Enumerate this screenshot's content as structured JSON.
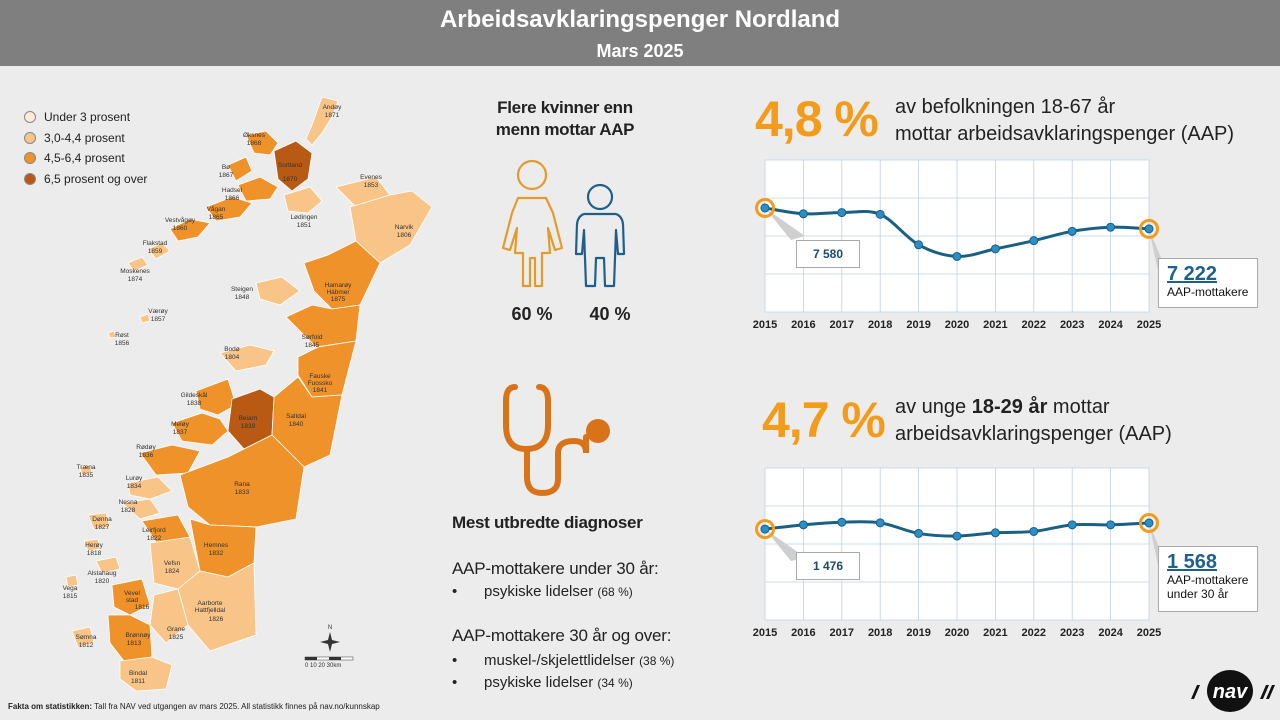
{
  "header": {
    "title": "Arbeidsavklaringspenger Nordland",
    "subtitle": "Mars 2025"
  },
  "legend": [
    {
      "label": "Under 3 prosent",
      "color": "#fdebd6"
    },
    {
      "label": "3,0-4,4 prosent",
      "color": "#f8c488"
    },
    {
      "label": "4,5-6,4 prosent",
      "color": "#f0922a"
    },
    {
      "label": "6,5 prosent og over",
      "color": "#b85a14"
    }
  ],
  "map": {
    "scale_label": "0  10  20  30km",
    "north": "N",
    "municipalities": [
      {
        "name": "Andøy",
        "code": "1871"
      },
      {
        "name": "Øksnes",
        "code": "1868"
      },
      {
        "name": "Bø",
        "code": "1867"
      },
      {
        "name": "Sortland",
        "code": "1870"
      },
      {
        "name": "Hadsel",
        "code": "1866"
      },
      {
        "name": "Evenes",
        "code": "1853"
      },
      {
        "name": "Vågan",
        "code": "1865"
      },
      {
        "name": "Lødingen",
        "code": "1851"
      },
      {
        "name": "Vestvågøy",
        "code": "1860"
      },
      {
        "name": "Narvik",
        "code": "1806"
      },
      {
        "name": "Flakstad",
        "code": "1859"
      },
      {
        "name": "Moskenes",
        "code": "1874"
      },
      {
        "name": "Steigen",
        "code": "1848"
      },
      {
        "name": "Hamarøy Hábmer",
        "code": "1875"
      },
      {
        "name": "Værøy",
        "code": "1857"
      },
      {
        "name": "Røst",
        "code": "1856"
      },
      {
        "name": "Bodø",
        "code": "1804"
      },
      {
        "name": "Sørfold",
        "code": "1845"
      },
      {
        "name": "Fauske Fuossko",
        "code": "1841"
      },
      {
        "name": "Gildeskål",
        "code": "1838"
      },
      {
        "name": "Beiarn",
        "code": "1839"
      },
      {
        "name": "Saltdal",
        "code": "1840"
      },
      {
        "name": "Meløy",
        "code": "1837"
      },
      {
        "name": "Rødøy",
        "code": "1836"
      },
      {
        "name": "Træna",
        "code": "1835"
      },
      {
        "name": "Lurøy",
        "code": "1834"
      },
      {
        "name": "Rana",
        "code": "1833"
      },
      {
        "name": "Nesna",
        "code": "1828"
      },
      {
        "name": "Dønna",
        "code": "1827"
      },
      {
        "name": "Leirfjord",
        "code": "1822"
      },
      {
        "name": "Herøy",
        "code": "1818"
      },
      {
        "name": "Hemnes",
        "code": "1832"
      },
      {
        "name": "Alstahaug",
        "code": "1820"
      },
      {
        "name": "Vefsn",
        "code": "1824"
      },
      {
        "name": "Vega",
        "code": "1815"
      },
      {
        "name": "Vevelstad",
        "code": "1816"
      },
      {
        "name": "Aarborte Hattfjelldal",
        "code": "1826"
      },
      {
        "name": "Grane",
        "code": "1825"
      },
      {
        "name": "Brønnøy",
        "code": "1813"
      },
      {
        "name": "Sømna",
        "code": "1812"
      },
      {
        "name": "Bindal",
        "code": "1811"
      }
    ]
  },
  "gender": {
    "title_line1": "Flere kvinner enn",
    "title_line2": "menn mottar AAP",
    "women_pct": "60 %",
    "men_pct": "40 %",
    "women_color": "#e39b2e",
    "men_color": "#1f5f8b",
    "women_icon": "female-person-icon",
    "men_icon": "male-person-icon"
  },
  "diagnoses": {
    "icon": "stethoscope-icon",
    "title": "Mest utbredte diagnoser",
    "group1_header": "AAP-mottakere under 30 år:",
    "group1_items": [
      {
        "bullet": "•",
        "text": "psykiske lidelser",
        "pct": "(68 %)"
      }
    ],
    "group2_header": "AAP-mottakere 30 år og over:",
    "group2_items": [
      {
        "bullet": "•",
        "text": "muskel-/skjelettlidelser",
        "pct": "(38 %)"
      },
      {
        "bullet": "•",
        "text": "psykiske lidelser",
        "pct": "(34 %)"
      }
    ]
  },
  "stat1": {
    "big": "4,8 %",
    "line1": "av befolkningen 18-67 år",
    "line2": "mottar arbeidsavklaringspenger (AAP)",
    "start_label": "7 580",
    "end_value": "7 222",
    "end_label": "AAP-mottakere"
  },
  "stat2": {
    "big": "4,7 %",
    "line1_pre": "av unge ",
    "line1_bold": "18-29 år",
    "line1_post": " mottar",
    "line2": "arbeidsavklaringspenger (AAP)",
    "start_label": "1 476",
    "end_value": "1 568",
    "end_label1": "AAP-mottakere",
    "end_label2": "under 30 år"
  },
  "chart_data": [
    {
      "type": "line",
      "x": [
        "2015",
        "2016",
        "2017",
        "2018",
        "2019",
        "2020",
        "2021",
        "2022",
        "2023",
        "2024",
        "2025"
      ],
      "series": [
        {
          "values": [
            7580,
            7480,
            7500,
            7470,
            6950,
            6750,
            6880,
            7020,
            7180,
            7250,
            7222
          ]
        }
      ],
      "ylim": [
        5800,
        8400
      ],
      "grid": true,
      "line_color": "#1a5f84",
      "highlight_color": "#f39c1c"
    },
    {
      "type": "line",
      "x": [
        "2015",
        "2016",
        "2017",
        "2018",
        "2019",
        "2020",
        "2021",
        "2022",
        "2023",
        "2024",
        "2025"
      ],
      "series": [
        {
          "values": [
            1476,
            1540,
            1580,
            1570,
            1410,
            1370,
            1420,
            1440,
            1540,
            1540,
            1568
          ]
        }
      ],
      "ylim": [
        100,
        2400
      ],
      "grid": true,
      "line_color": "#1a5f84",
      "highlight_color": "#f39c1c"
    }
  ],
  "footer": {
    "bold": "Fakta om statistikken:",
    "text": " Tall fra NAV ved utgangen av mars 2025. All statistikk finnes på nav.no/kunnskap"
  },
  "logo": {
    "text": "nav",
    "icon": "nav-logo"
  }
}
